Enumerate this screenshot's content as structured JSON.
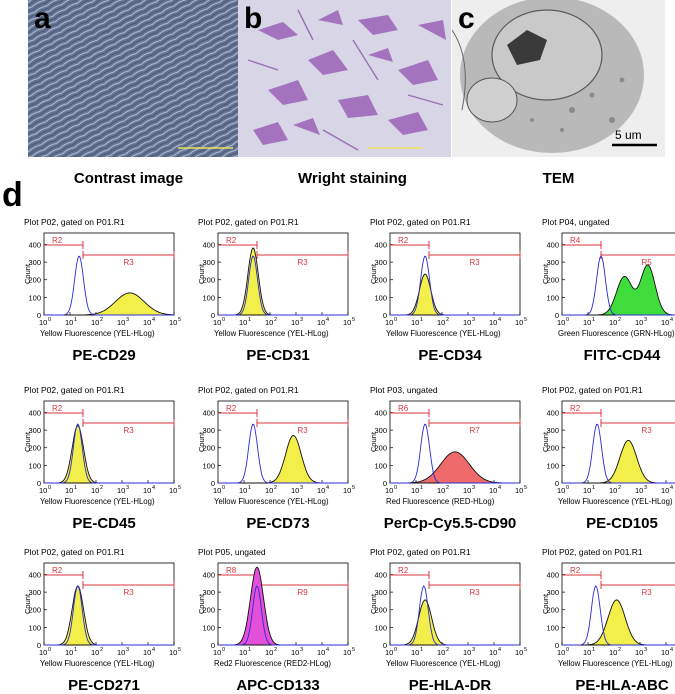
{
  "panels": {
    "a": {
      "letter": "a",
      "caption": "Contrast image"
    },
    "b": {
      "letter": "b",
      "caption": "Wright staining"
    },
    "c": {
      "letter": "c",
      "caption": "TEM",
      "scalebar": "5 um"
    },
    "d": {
      "letter": "d"
    }
  },
  "colors": {
    "gate": "#d9363e",
    "control": "#2b2bd6",
    "yellow": "#f2ee4a",
    "green": "#3fdc3c",
    "red": "#ef6b6b",
    "magenta": "#e34fd9"
  },
  "axis": {
    "y_ticks": [
      "400",
      "300",
      "200",
      "100",
      "0"
    ],
    "y_label": "Count",
    "x_ticks": [
      [
        "10",
        "0"
      ],
      [
        "10",
        "1"
      ],
      [
        "10",
        "2"
      ],
      [
        "10",
        "3"
      ],
      [
        "10",
        "4"
      ],
      [
        "10",
        "5"
      ]
    ]
  },
  "histograms": [
    {
      "label": "PE-CD29",
      "header": "Plot P02, gated on P01.R1",
      "xlabel": "Yellow Fluorescence (YEL-HLog)",
      "gates": [
        "R2",
        "R3"
      ],
      "fill": "yellow",
      "control_peak": 1.35,
      "sample_peak": 3.3,
      "sample_height": 0.27,
      "sample_width": 0.55,
      "bimodal": false
    },
    {
      "label": "PE-CD31",
      "header": "Plot P02, gated on P01.R1",
      "xlabel": "Yellow Fluorescence (YEL-HLog)",
      "gates": [
        "R2",
        "R3"
      ],
      "fill": "yellow",
      "control_peak": 1.35,
      "sample_peak": 1.35,
      "sample_height": 0.82,
      "sample_width": 0.2,
      "bimodal": false
    },
    {
      "label": "PE-CD34",
      "header": "Plot P02, gated on P01.R1",
      "xlabel": "Yellow Fluorescence (YEL-HLog)",
      "gates": [
        "R2",
        "R3"
      ],
      "fill": "yellow",
      "control_peak": 1.35,
      "sample_peak": 1.35,
      "sample_height": 0.5,
      "sample_width": 0.22,
      "bimodal": false
    },
    {
      "label": "FITC-CD44",
      "header": "Plot P04, ungated",
      "xlabel": "Green Fluorescence (GRN-HLog)",
      "gates": [
        "R4",
        "R5"
      ],
      "fill": "green",
      "control_peak": 1.5,
      "sample_peak": 2.4,
      "sample_height": 0.55,
      "sample_width": 0.3,
      "bimodal": true
    },
    {
      "label": "PE-CD45",
      "header": "Plot P02, gated on P01.R1",
      "xlabel": "Yellow Fluorescence (YEL-HLog)",
      "gates": [
        "R2",
        "R3"
      ],
      "fill": "yellow",
      "control_peak": 1.3,
      "sample_peak": 1.3,
      "sample_height": 0.7,
      "sample_width": 0.22,
      "bimodal": false
    },
    {
      "label": "PE-CD73",
      "header": "Plot P02, gated on P01.R1",
      "xlabel": "Yellow Fluorescence (YEL-HLog)",
      "gates": [
        "R2",
        "R3"
      ],
      "fill": "yellow",
      "control_peak": 1.35,
      "sample_peak": 2.9,
      "sample_height": 0.58,
      "sample_width": 0.3,
      "bimodal": false
    },
    {
      "label": "PerCp-Cy5.5-CD90",
      "header": "Plot P03, ungated",
      "xlabel": "Red Fluorescence (RED-HLog)",
      "gates": [
        "R6",
        "R7"
      ],
      "fill": "red",
      "control_peak": 1.35,
      "sample_peak": 2.5,
      "sample_height": 0.38,
      "sample_width": 0.55,
      "bimodal": false
    },
    {
      "label": "PE-CD105",
      "header": "Plot P02, gated on P01.R1",
      "xlabel": "Yellow Fluorescence (YEL-HLog)",
      "gates": [
        "R2",
        "R3"
      ],
      "fill": "yellow",
      "control_peak": 1.35,
      "sample_peak": 2.55,
      "sample_height": 0.52,
      "sample_width": 0.32,
      "bimodal": false
    },
    {
      "label": "PE-CD271",
      "header": "Plot P02, gated on P01.R1",
      "xlabel": "Yellow Fluorescence (YEL-HLog)",
      "gates": [
        "R2",
        "R3"
      ],
      "fill": "yellow",
      "control_peak": 1.3,
      "sample_peak": 1.3,
      "sample_height": 0.72,
      "sample_width": 0.22,
      "bimodal": false
    },
    {
      "label": "APC-CD133",
      "header": "Plot P05, ungated",
      "xlabel": "Red2 Fluorescence (RED2-HLog)",
      "gates": [
        "R8",
        "R9"
      ],
      "fill": "magenta",
      "control_peak": 1.5,
      "sample_peak": 1.5,
      "sample_height": 0.95,
      "sample_width": 0.25,
      "bimodal": false
    },
    {
      "label": "PE-HLA-DR",
      "header": "Plot P02, gated on P01.R1",
      "xlabel": "Yellow Fluorescence (YEL-HLog)",
      "gates": [
        "R2",
        "R3"
      ],
      "fill": "yellow",
      "control_peak": 1.3,
      "sample_peak": 1.35,
      "sample_height": 0.55,
      "sample_width": 0.25,
      "bimodal": false
    },
    {
      "label": "PE-HLA-ABC",
      "header": "Plot P02, gated on P01.R1",
      "xlabel": "Yellow Fluorescence (YEL-HLog)",
      "gates": [
        "R2",
        "R3"
      ],
      "fill": "yellow",
      "control_peak": 1.3,
      "sample_peak": 2.1,
      "sample_height": 0.55,
      "sample_width": 0.33,
      "bimodal": false
    }
  ]
}
